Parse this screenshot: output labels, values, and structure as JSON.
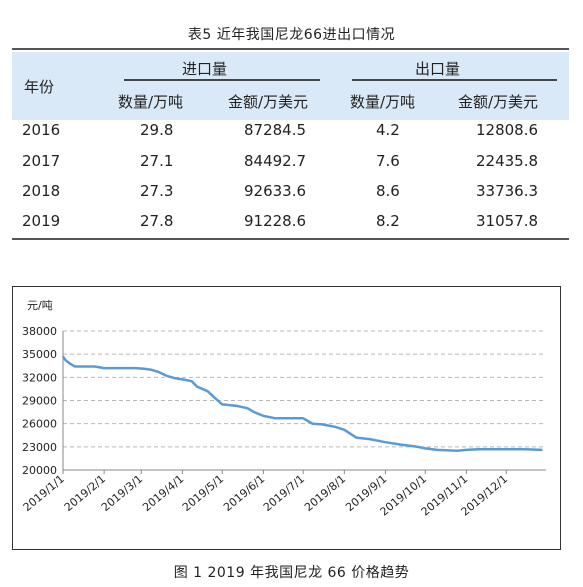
{
  "table": {
    "title": "表5  近年我国尼龙66进出口情况",
    "year_header": "年份",
    "import_header": "进口量",
    "export_header": "出口量",
    "sub_headers": [
      "数量/万吨",
      "金额/万美元",
      "数量/万吨",
      "金额/万美元"
    ],
    "rows": [
      {
        "year": "2016",
        "imp_qty": "29.8",
        "imp_amt": "87284.5",
        "exp_qty": "4.2",
        "exp_amt": "12808.6"
      },
      {
        "year": "2017",
        "imp_qty": "27.1",
        "imp_amt": "84492.7",
        "exp_qty": "7.6",
        "exp_amt": "22435.8"
      },
      {
        "year": "2018",
        "imp_qty": "27.3",
        "imp_amt": "92633.6",
        "exp_qty": "8.6",
        "exp_amt": "33736.3"
      },
      {
        "year": "2019",
        "imp_qty": "27.8",
        "imp_amt": "91228.6",
        "exp_qty": "8.2",
        "exp_amt": "31057.8"
      }
    ]
  },
  "caption": "图 1  2019 年我国尼龙 66 价格趋势",
  "chart_data": {
    "type": "line",
    "title": "",
    "xlabel": "",
    "ylabel": "元/吨",
    "ylim": [
      20000,
      38000
    ],
    "yticks": [
      "20000",
      "23000",
      "26000",
      "29000",
      "32000",
      "35000",
      "38000"
    ],
    "xticks": [
      "2019/1/1",
      "2019/2/1",
      "2019/3/1",
      "2019/4/1",
      "2019/5/1",
      "2019/6/1",
      "2019/7/1",
      "2019/8/1",
      "2019/9/1",
      "2019/10/1",
      "2019/11/1",
      "2019/12/1"
    ],
    "xlim": [
      "2019-01-01",
      "2019-12-31"
    ],
    "grid": true,
    "line_color": "#5b9bd5",
    "series": [
      {
        "x": [
          "2019-01-01",
          "2019-01-03",
          "2019-01-06",
          "2019-01-10",
          "2019-01-25",
          "2019-02-01",
          "2019-02-15",
          "2019-02-25",
          "2019-03-03",
          "2019-03-08",
          "2019-03-14",
          "2019-03-20",
          "2019-03-26",
          "2019-04-02",
          "2019-04-08",
          "2019-04-12",
          "2019-04-20",
          "2019-04-25",
          "2019-05-01",
          "2019-05-12",
          "2019-05-20",
          "2019-05-25",
          "2019-06-01",
          "2019-06-10",
          "2019-06-25",
          "2019-07-01",
          "2019-07-08",
          "2019-07-15",
          "2019-07-25",
          "2019-08-01",
          "2019-08-10",
          "2019-08-20",
          "2019-09-01",
          "2019-09-12",
          "2019-09-25",
          "2019-10-01",
          "2019-10-10",
          "2019-10-25",
          "2019-11-01",
          "2019-11-10",
          "2019-11-30",
          "2019-12-15",
          "2019-12-28"
        ],
        "y": [
          34700,
          34200,
          33800,
          33400,
          33400,
          33200,
          33200,
          33200,
          33100,
          33000,
          32700,
          32200,
          31900,
          31700,
          31500,
          30800,
          30200,
          29400,
          28500,
          28300,
          28000,
          27500,
          27000,
          26700,
          26700,
          26700,
          26000,
          25900,
          25600,
          25200,
          24200,
          24000,
          23600,
          23300,
          23000,
          22800,
          22600,
          22500,
          22600,
          22700,
          22700,
          22700,
          22600
        ]
      }
    ]
  }
}
